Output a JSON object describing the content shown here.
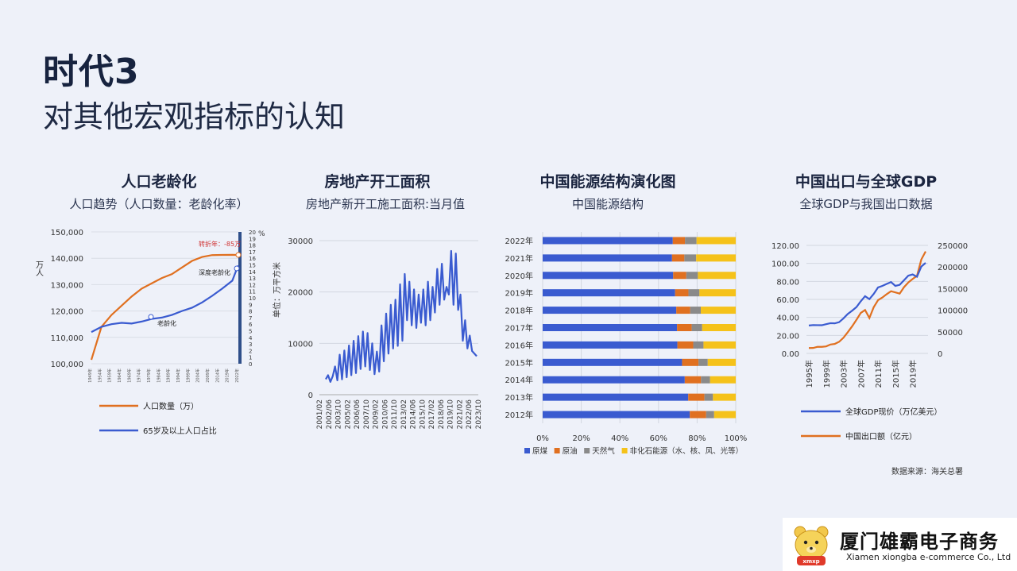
{
  "header": {
    "title": "时代3",
    "subtitle": "对其他宏观指标的认知"
  },
  "panels": [
    {
      "title": "人口老龄化",
      "subtitle": "人口趋势（人口数量：老龄化率）"
    },
    {
      "title": "房地产开工面积",
      "subtitle": "房地产新开工施工面积:当月值"
    },
    {
      "title": "中国能源结构演化图",
      "subtitle": "中国能源结构"
    },
    {
      "title": "中国出口与全球GDP",
      "subtitle": "全球GDP与我国出口数据"
    }
  ],
  "source_note": "数据来源：海关总署",
  "logo": {
    "name": "厦门雄霸电子商务",
    "english": "Xiamen xiongba e-commerce Co., Ltd",
    "badge": "xmxp"
  },
  "colors": {
    "blue": "#3a5bd0",
    "orange": "#e07020",
    "gray": "#8a8a8a",
    "yellow": "#f5c21a",
    "bg": "#eef1f9"
  },
  "chart_data": [
    {
      "type": "line",
      "ylabel": "万人",
      "y2label": "%",
      "ylim": [
        100000,
        150000
      ],
      "y2lim": [
        0,
        20
      ],
      "yticks": [
        "150,000",
        "140,000",
        "130,000",
        "120,000",
        "110,000",
        "100,000"
      ],
      "y2ticks": [
        "20",
        "19",
        "18",
        "17",
        "16",
        "15",
        "14",
        "13",
        "12",
        "11",
        "10",
        "9",
        "8",
        "7",
        "6",
        "5",
        "4",
        "3",
        "2",
        "1",
        "0"
      ],
      "xticks": [
        "1949年",
        "1954年",
        "1959年",
        "1964年",
        "1969年",
        "1974年",
        "1979年",
        "1984年",
        "1989年",
        "1994年",
        "1999年",
        "2004年",
        "2009年",
        "2014年",
        "2019年",
        "2022年"
      ],
      "x": [
        1949,
        1954,
        1959,
        1964,
        1969,
        1974,
        1979,
        1984,
        1989,
        1994,
        1999,
        2004,
        2009,
        2014,
        2019,
        2021,
        2022
      ],
      "series": [
        {
          "name": "人口数量（万）",
          "axis": "left",
          "values": [
            101500,
            114000,
            118500,
            122000,
            125500,
            128500,
            130500,
            132500,
            134000,
            136500,
            139000,
            140500,
            141200,
            141260,
            141300,
            141260,
            141175
          ]
        },
        {
          "name": "65岁及以上人口占比",
          "axis": "right",
          "values": [
            4.8,
            5.6,
            6.0,
            6.2,
            6.1,
            6.4,
            6.8,
            7.0,
            7.4,
            8.0,
            8.5,
            9.3,
            10.3,
            11.4,
            12.6,
            14.2,
            14.9
          ]
        }
      ],
      "annotations": [
        "转折年：-85万",
        "深度老龄化",
        "老龄化"
      ]
    },
    {
      "type": "line",
      "ylabel": "单位：万平方米",
      "ylim": [
        0,
        30000
      ],
      "yticks": [
        "30000",
        "20000",
        "10000",
        "0"
      ],
      "xticks": [
        "2001/02",
        "2002/06",
        "2003/10",
        "2005/02",
        "2006/06",
        "2007/10",
        "2009/02",
        "2010/06",
        "2011/10",
        "2013/02",
        "2014/06",
        "2015/10",
        "2017/02",
        "2018/06",
        "2019/10",
        "2021/02",
        "2022/06",
        "2023/10"
      ],
      "series": [
        {
          "name": "房地产新开工施工面积:当月值",
          "values": [
            3000,
            3800,
            2500,
            3600,
            5500,
            2800,
            7800,
            3000,
            8600,
            3400,
            9600,
            3800,
            10500,
            4200,
            11400,
            5000,
            12300,
            5500,
            12000,
            4800,
            10000,
            4000,
            8400,
            4500,
            13500,
            6500,
            15800,
            8000,
            17500,
            9000,
            18500,
            9500,
            21500,
            10500,
            23500,
            14500,
            22000,
            13500,
            20500,
            13000,
            19500,
            14000,
            20500,
            13500,
            22000,
            14500,
            21000,
            16000,
            24500,
            17500,
            25500,
            18500,
            21000,
            19500,
            28000,
            17500,
            27500,
            16500,
            19500,
            10500,
            14500,
            9000,
            11500,
            8500,
            8000,
            7500
          ]
        }
      ]
    },
    {
      "type": "bar",
      "stacked": true,
      "orientation": "horizontal",
      "categories": [
        "2022年",
        "2021年",
        "2020年",
        "2019年",
        "2018年",
        "2017年",
        "2016年",
        "2015年",
        "2014年",
        "2013年",
        "2012年"
      ],
      "xticks": [
        "0%",
        "20%",
        "40%",
        "60%",
        "80%",
        "100%"
      ],
      "series": [
        {
          "name": "原煤",
          "values": [
            67.4,
            67.0,
            67.6,
            68.6,
            69.2,
            69.6,
            69.8,
            72.2,
            73.6,
            75.4,
            76.2
          ]
        },
        {
          "name": "原油",
          "values": [
            6.3,
            6.4,
            6.8,
            6.9,
            7.2,
            7.6,
            8.2,
            8.5,
            8.4,
            8.4,
            8.5
          ]
        },
        {
          "name": "天然气",
          "values": [
            6.0,
            6.1,
            6.0,
            5.7,
            5.5,
            5.4,
            5.3,
            4.8,
            4.7,
            4.4,
            4.1
          ]
        },
        {
          "name": "非化石能源（水、核、风、光等）",
          "values": [
            20.3,
            20.5,
            19.6,
            18.8,
            18.1,
            17.4,
            16.7,
            14.5,
            13.3,
            11.8,
            11.2
          ]
        }
      ]
    },
    {
      "type": "line",
      "ylim": [
        0,
        120
      ],
      "y2lim": [
        0,
        250000
      ],
      "yticks": [
        "120.00",
        "100.00",
        "80.00",
        "60.00",
        "40.00",
        "20.00",
        "0.00"
      ],
      "y2ticks": [
        "250000",
        "200000",
        "150000",
        "100000",
        "50000",
        "0"
      ],
      "xticks": [
        "1995年",
        "1999年",
        "2003年",
        "2007年",
        "2011年",
        "2015年",
        "2019年"
      ],
      "x": [
        1995,
        1996,
        1997,
        1998,
        1999,
        2000,
        2001,
        2002,
        2003,
        2004,
        2005,
        2006,
        2007,
        2008,
        2009,
        2010,
        2011,
        2012,
        2013,
        2014,
        2015,
        2016,
        2017,
        2018,
        2019,
        2020,
        2021,
        2022
      ],
      "series": [
        {
          "name": "全球GDP现价（万亿美元）",
          "axis": "left",
          "values": [
            31.0,
            31.5,
            31.4,
            31.3,
            32.5,
            33.6,
            33.4,
            34.7,
            38.9,
            43.8,
            47.4,
            51.4,
            57.9,
            63.6,
            60.3,
            66.1,
            73.3,
            75.0,
            77.2,
            79.3,
            75.0,
            76.2,
            81.3,
            86.4,
            87.7,
            85.2,
            96.5,
            100.6
          ]
        },
        {
          "name": "中国出口额（亿元）",
          "axis": "right",
          "values": [
            12400,
            12600,
            15200,
            15200,
            16200,
            20600,
            22000,
            26900,
            36300,
            49100,
            62600,
            77600,
            93600,
            100400,
            82000,
            107000,
            123200,
            129400,
            137100,
            143900,
            141200,
            138400,
            153300,
            164200,
            172400,
            179300,
            217300,
            236000
          ]
        }
      ]
    }
  ]
}
